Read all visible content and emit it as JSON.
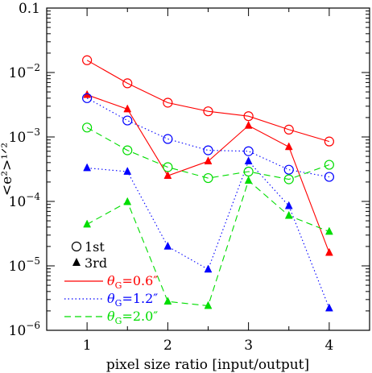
{
  "chart_data": {
    "type": "line",
    "xlabel": "pixel size ratio [input/output]",
    "ylabel": "<e²>¹ᐟ²",
    "xlim": [
      0.5,
      4.5
    ],
    "ylim": [
      1e-06,
      0.1
    ],
    "yscale": "log",
    "grid": false,
    "legend_position": "bottom-left",
    "x_ticks": [
      1,
      2,
      3,
      4
    ],
    "x_tick_labels": [
      "1",
      "2",
      "3",
      "4"
    ],
    "y_tick_labels": [
      {
        "value": 1e-06,
        "mantissa": "10",
        "exp": "−6"
      },
      {
        "value": 1e-05,
        "mantissa": "10",
        "exp": "−5"
      },
      {
        "value": 0.0001,
        "mantissa": "10",
        "exp": "−4"
      },
      {
        "value": 0.001,
        "mantissa": "10",
        "exp": "−3"
      },
      {
        "value": 0.01,
        "mantissa": "10",
        "exp": "−2"
      },
      {
        "value": 0.1,
        "mantissa": "0.1",
        "exp": ""
      }
    ],
    "x": [
      1,
      1.5,
      2,
      2.5,
      3,
      3.5,
      4
    ],
    "series": [
      {
        "theta": "0.6",
        "color": "#ff0000",
        "dash": "solid",
        "order": "1st",
        "marker": "circle",
        "values": [
          0.0155,
          0.0068,
          0.0034,
          0.0025,
          0.0021,
          0.0013,
          0.00085
        ]
      },
      {
        "theta": "0.6",
        "color": "#ff0000",
        "dash": "solid",
        "order": "3rd",
        "marker": "triangle",
        "values": [
          0.0045,
          0.0027,
          0.00025,
          0.00042,
          0.0015,
          0.0007,
          1.6e-05
        ]
      },
      {
        "theta": "1.2",
        "color": "#0000ff",
        "dash": "dotted",
        "order": "1st",
        "marker": "circle",
        "values": [
          0.004,
          0.0018,
          0.00093,
          0.00062,
          0.0006,
          0.00031,
          0.00024
        ]
      },
      {
        "theta": "1.2",
        "color": "#0000ff",
        "dash": "dotted",
        "order": "3rd",
        "marker": "triangle",
        "values": [
          0.00033,
          0.00029,
          2e-05,
          8.8e-06,
          0.00042,
          8.5e-05,
          2.2e-06
        ]
      },
      {
        "theta": "2.0",
        "color": "#00dd00",
        "dash": "dashed",
        "order": "1st",
        "marker": "circle",
        "values": [
          0.0014,
          0.00062,
          0.00034,
          0.00023,
          0.00029,
          0.00022,
          0.00037
        ]
      },
      {
        "theta": "2.0",
        "color": "#00dd00",
        "dash": "dashed",
        "order": "3rd",
        "marker": "triangle",
        "values": [
          4.4e-05,
          9.8e-05,
          2.8e-06,
          2.4e-06,
          0.00021,
          6e-05,
          3.4e-05
        ]
      }
    ],
    "legend": {
      "markers": [
        {
          "marker": "circle",
          "label": "1st"
        },
        {
          "marker": "triangle",
          "label": "3rd"
        }
      ],
      "lines": [
        {
          "prefix": "θ",
          "sub": "G",
          "value": "=0.6″",
          "color": "#ff0000",
          "dash": "solid"
        },
        {
          "prefix": "θ",
          "sub": "G",
          "value": "=1.2″",
          "color": "#0000ff",
          "dash": "dotted"
        },
        {
          "prefix": "θ",
          "sub": "G",
          "value": "=2.0″",
          "color": "#00dd00",
          "dash": "dashed"
        }
      ]
    }
  }
}
